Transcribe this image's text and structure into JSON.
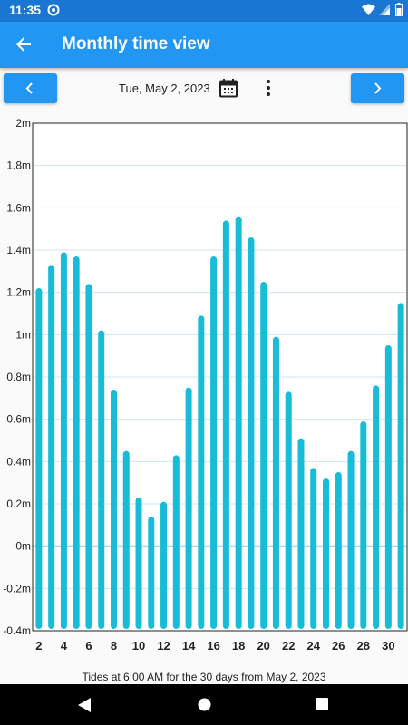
{
  "status_bar": {
    "time": "11:35"
  },
  "app_bar": {
    "title": "Monthly time view"
  },
  "toolbar": {
    "date": "Tue, May 2, 2023"
  },
  "colors": {
    "bar": "#17bdd6",
    "app_bar": "#2196f3",
    "status_bar": "#1976d2",
    "grid": "#cfe6f3",
    "zero_line": "#2c95bf"
  },
  "chart_data": {
    "type": "bar",
    "categories": [
      2,
      3,
      4,
      5,
      6,
      7,
      8,
      9,
      10,
      11,
      12,
      13,
      14,
      15,
      16,
      17,
      18,
      19,
      20,
      21,
      22,
      23,
      24,
      25,
      26,
      27,
      28,
      29,
      30,
      31
    ],
    "values": [
      1.22,
      1.33,
      1.39,
      1.37,
      1.24,
      1.02,
      0.74,
      0.45,
      0.23,
      0.14,
      0.21,
      0.43,
      0.75,
      1.09,
      1.37,
      1.54,
      1.56,
      1.46,
      1.25,
      0.99,
      0.73,
      0.51,
      0.37,
      0.32,
      0.35,
      0.45,
      0.59,
      0.76,
      0.95,
      1.15
    ],
    "ylim": [
      -0.4,
      2.0
    ],
    "y_ticks": [
      "2m",
      "1.8m",
      "1.6m",
      "1.4m",
      "1.2m",
      "1m",
      "0.8m",
      "0.6m",
      "0.4m",
      "0.2m",
      "0m",
      "-0.2m",
      "-0.4m"
    ],
    "x_ticks": [
      "2",
      "4",
      "6",
      "8",
      "10",
      "12",
      "14",
      "16",
      "18",
      "20",
      "22",
      "24",
      "26",
      "28",
      "30"
    ],
    "grid": true
  },
  "caption": "Tides at 6:00 AM for the 30 days from May 2, 2023"
}
